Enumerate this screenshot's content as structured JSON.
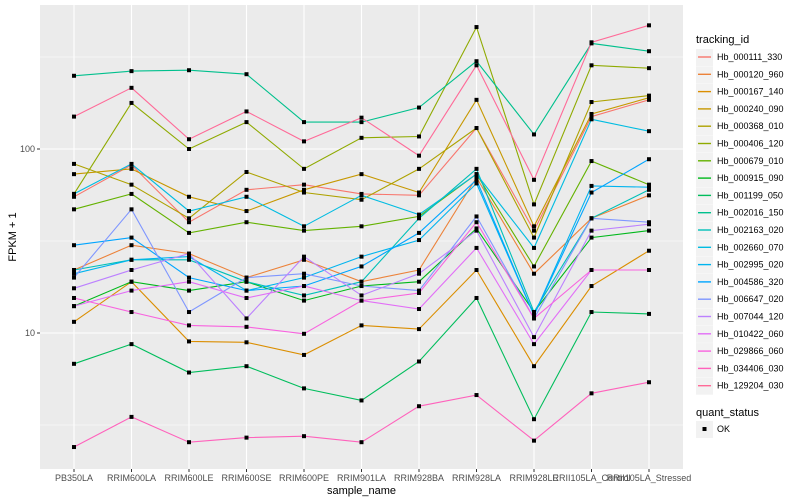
{
  "chart_data": {
    "type": "line",
    "title": "",
    "xlabel": "sample_name",
    "ylabel": "FPKM + 1",
    "yscale": "log10",
    "ylim": [
      2.1,
      600
    ],
    "yticks": [
      10,
      100
    ],
    "ytick_labels": [
      "10",
      "100"
    ],
    "grid": true,
    "legend_position": "right",
    "categories": [
      "PB350LA",
      "RRIM600LA",
      "RRIM600LE",
      "RRIM600SE",
      "RRIM600PE",
      "RRIM901LA",
      "RRIM928BA",
      "RRIM928LA",
      "RRIM928LE",
      "RRII105LA_Control",
      "RRII105LA_Stressed"
    ],
    "legend_color_title": "tracking_id",
    "legend_shape_title": "quant_status",
    "shape_levels": [
      {
        "label": "OK",
        "marker": "square"
      }
    ],
    "series": [
      {
        "name": "Hb_000111_330",
        "color": "#F8766D",
        "values": [
          55,
          82,
          40,
          60,
          64,
          57,
          56,
          130,
          36,
          150,
          185
        ]
      },
      {
        "name": "Hb_000120_960",
        "color": "#EC8239",
        "values": [
          22,
          30,
          27,
          20,
          25,
          19,
          22,
          70,
          21,
          42,
          56
        ]
      },
      {
        "name": "Hb_000167_140",
        "color": "#DB8E00",
        "values": [
          11.5,
          19,
          9,
          8.9,
          7.6,
          11,
          10.5,
          22,
          6.6,
          18,
          28
        ]
      },
      {
        "name": "Hb_000240_090",
        "color": "#C79800",
        "values": [
          73,
          78,
          55,
          46,
          60,
          73,
          58,
          185,
          38,
          155,
          190
        ]
      },
      {
        "name": "Hb_000368_010",
        "color": "#AEA200",
        "values": [
          83,
          64,
          42,
          75,
          58,
          53,
          78,
          130,
          33,
          180,
          195
        ]
      },
      {
        "name": "Hb_000406_120",
        "color": "#8FAA00",
        "values": [
          57,
          178,
          100,
          140,
          78,
          115,
          117,
          460,
          50,
          285,
          275
        ]
      },
      {
        "name": "Hb_000679_010",
        "color": "#64B200",
        "values": [
          47,
          57,
          35,
          40,
          36,
          38,
          43,
          73,
          23,
          86,
          64
        ]
      },
      {
        "name": "Hb_000915_090",
        "color": "#00B81B",
        "values": [
          14,
          19,
          17,
          19,
          15,
          18,
          19,
          37,
          13,
          33,
          36
        ]
      },
      {
        "name": "Hb_001199_050",
        "color": "#00BD5C",
        "values": [
          6.8,
          8.7,
          6.1,
          6.6,
          5,
          4.3,
          7,
          15.5,
          3.4,
          13,
          12.7
        ]
      },
      {
        "name": "Hb_002016_150",
        "color": "#00C08D",
        "values": [
          250,
          265,
          268,
          255,
          140,
          140,
          168,
          300,
          120,
          375,
          340
        ]
      },
      {
        "name": "Hb_002163_020",
        "color": "#00C0B8",
        "values": [
          22,
          25,
          25,
          19,
          16,
          19,
          42,
          78,
          13,
          42,
          60
        ]
      },
      {
        "name": "Hb_002660_070",
        "color": "#00BCE1",
        "values": [
          57,
          83,
          46,
          55,
          38,
          56,
          44,
          73,
          29,
          145,
          125
        ]
      },
      {
        "name": "Hb_002995_020",
        "color": "#00B4EF",
        "values": [
          21,
          25,
          26,
          17,
          20,
          26,
          32,
          65,
          12.5,
          63,
          62
        ]
      },
      {
        "name": "Hb_004586_320",
        "color": "#00A5FF",
        "values": [
          30,
          33,
          20,
          17,
          18,
          23,
          35,
          68,
          12.5,
          58,
          88
        ]
      },
      {
        "name": "Hb_006647_020",
        "color": "#7F96FF",
        "values": [
          20,
          47,
          13,
          20,
          21,
          18,
          17,
          43,
          12,
          42,
          40
        ]
      },
      {
        "name": "Hb_007044_120",
        "color": "#BC81FF",
        "values": [
          17.5,
          22,
          27,
          12,
          26,
          16,
          21,
          36,
          9.5,
          36,
          39
        ]
      },
      {
        "name": "Hb_010422_060",
        "color": "#E26EF7",
        "values": [
          14,
          17,
          19,
          15.5,
          18,
          15,
          13.5,
          29,
          8.7,
          22,
          22
        ]
      },
      {
        "name": "Hb_029866_060",
        "color": "#F863DF",
        "values": [
          15.5,
          13,
          11,
          10.8,
          9.9,
          15,
          16.5,
          40,
          12,
          22,
          22
        ]
      },
      {
        "name": "Hb_034406_030",
        "color": "#FF62BC",
        "values": [
          2.4,
          3.5,
          2.55,
          2.7,
          2.75,
          2.55,
          4,
          4.6,
          2.6,
          4.7,
          5.4
        ]
      },
      {
        "name": "Hb_129204_030",
        "color": "#FF6A98",
        "values": [
          150,
          215,
          113,
          160,
          110,
          148,
          92,
          285,
          68,
          380,
          470
        ]
      }
    ]
  }
}
